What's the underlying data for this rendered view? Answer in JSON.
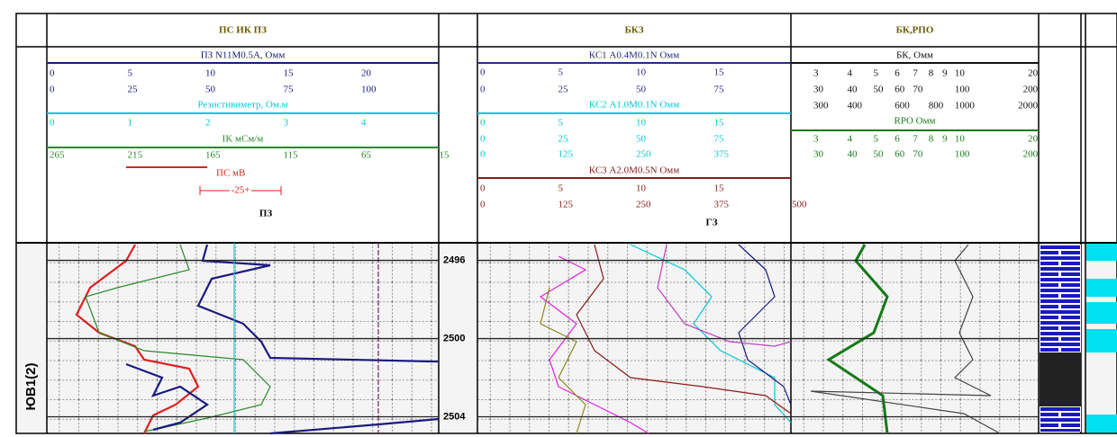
{
  "zone_label": "ЮВ1(2)",
  "depth": {
    "values": [
      2496,
      2500,
      2504
    ],
    "lim": [
      2495.1,
      2504.85
    ]
  },
  "tracks": [
    {
      "title": "ПС ИК ПЗ",
      "footer": "ПЗ",
      "curves": [
        {
          "name": "ПЗ N11M0.5A, Омм",
          "color": "#1a1a80",
          "scales": [
            [
              0,
              5,
              10,
              15,
              20
            ],
            [
              0,
              25,
              50,
              75,
              100
            ]
          ]
        },
        {
          "name": "Резистивиметр, Ом.м",
          "color": "#00c8d8",
          "scales": [
            [
              0,
              1,
              2,
              3,
              4
            ]
          ]
        },
        {
          "name": "IK мСм/м",
          "color": "#2a8a2a",
          "scales": [
            [
              265,
              215,
              165,
              115,
              65,
              15
            ]
          ]
        },
        {
          "name": "ПС мВ",
          "color": "#e02020",
          "span_label": "-25+"
        }
      ]
    },
    {
      "title": "БКЗ",
      "footer": "ГЗ",
      "curves": [
        {
          "name": "КС1   A0.4M0.1N   Омм",
          "color": "#2a2a90",
          "scales": [
            [
              0,
              5,
              10,
              15
            ],
            [
              0,
              25,
              50,
              75
            ]
          ]
        },
        {
          "name": "КС2   A1.0M0.1N   Омм",
          "color": "#00c8d8",
          "scales": [
            [
              0,
              5,
              10,
              15
            ],
            [
              0,
              25,
              50,
              75
            ],
            [
              0,
              125,
              250,
              375
            ]
          ]
        },
        {
          "name": "КС3   A2.0M0.5N   Омм",
          "color": "#8a1a1a",
          "scales": [
            [
              0,
              5,
              10,
              15
            ],
            [
              0,
              125,
              250,
              375,
              500
            ]
          ]
        }
      ]
    },
    {
      "title": "БК,РПО",
      "scale": "log",
      "curves": [
        {
          "name": "БК, Омм",
          "color": "#111111",
          "scales": [
            [
              3,
              4,
              5,
              6,
              7,
              8,
              9,
              10,
              20
            ],
            [
              30,
              40,
              50,
              60,
              70,
              100,
              200
            ],
            [
              300,
              400,
              600,
              800,
              1000,
              2000
            ]
          ]
        },
        {
          "name": "RPO  Омм",
          "color": "#1a7a1a",
          "scales": [
            [
              3,
              4,
              5,
              6,
              7,
              8,
              9,
              10,
              20
            ],
            [
              30,
              40,
              50,
              60,
              70,
              100,
              200
            ]
          ]
        }
      ]
    }
  ]
}
